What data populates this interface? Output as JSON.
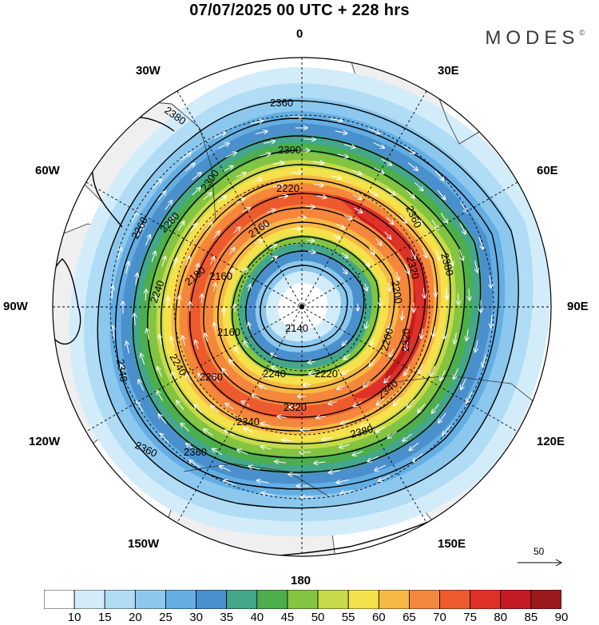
{
  "title": "07/07/2025  00 UTC  + 228 hrs",
  "brand": "MODES",
  "brand_mark": "©",
  "longitude_labels": [
    "0",
    "30E",
    "60E",
    "90E",
    "120E",
    "150E",
    "180",
    "150W",
    "120W",
    "90W",
    "60W",
    "30W"
  ],
  "contour_labels": [
    "2140",
    "2160",
    "2160",
    "2160",
    "2180",
    "2200",
    "2200",
    "2220",
    "2220",
    "2220",
    "2240",
    "2240",
    "2240",
    "2260",
    "2260",
    "2280",
    "2300",
    "2300",
    "2320",
    "2320",
    "2320",
    "2340",
    "2340",
    "2340",
    "2360",
    "2360",
    "2360",
    "2360",
    "2360",
    "2380",
    "2380",
    "2380"
  ],
  "vector_reference": {
    "label": "50"
  },
  "colorbar": {
    "ticks": [
      "10",
      "15",
      "20",
      "25",
      "30",
      "35",
      "40",
      "45",
      "50",
      "55",
      "60",
      "65",
      "70",
      "75",
      "80",
      "85",
      "90"
    ],
    "colors": [
      "#ffffff",
      "#d3ecfa",
      "#b0dcf5",
      "#8cc8ee",
      "#64aee3",
      "#4a90cc",
      "#44a68a",
      "#4caf4c",
      "#83c441",
      "#c6da4a",
      "#f5e14b",
      "#f8b845",
      "#f4873b",
      "#ec5a2e",
      "#de3127",
      "#c41b22",
      "#9b1a1e"
    ]
  }
}
